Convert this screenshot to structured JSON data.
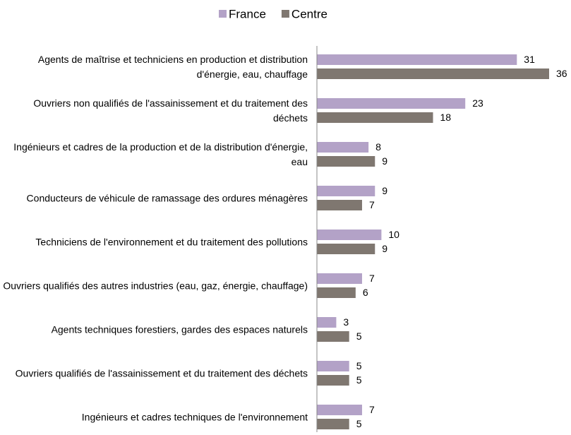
{
  "chart_data": {
    "type": "bar",
    "orientation": "horizontal",
    "categories": [
      "Agents de maîtrise et techniciens en production et distribution d'énergie, eau, chauffage",
      "Ouvriers non qualifiés de l'assainissement et du traitement des déchets",
      "Ingénieurs et cadres de la production et de la distribution d'énergie, eau",
      "Conducteurs de véhicule de ramassage des ordures ménagères",
      "Techniciens de l'environnement et du traitement des pollutions",
      "Ouvriers qualifiés des autres industries (eau, gaz, énergie, chauffage)",
      "Agents techniques forestiers, gardes des espaces naturels",
      "Ouvriers qualifiés de l'assainissement et du traitement des déchets",
      "Ingénieurs et cadres techniques de l'environnement"
    ],
    "series": [
      {
        "name": "France",
        "color": "#b3a2c7",
        "values": [
          31,
          23,
          8,
          9,
          10,
          7,
          3,
          5,
          7
        ]
      },
      {
        "name": "Centre",
        "color": "#7f7770",
        "values": [
          36,
          18,
          9,
          7,
          9,
          6,
          5,
          5,
          5
        ]
      }
    ],
    "legend": "top"
  }
}
